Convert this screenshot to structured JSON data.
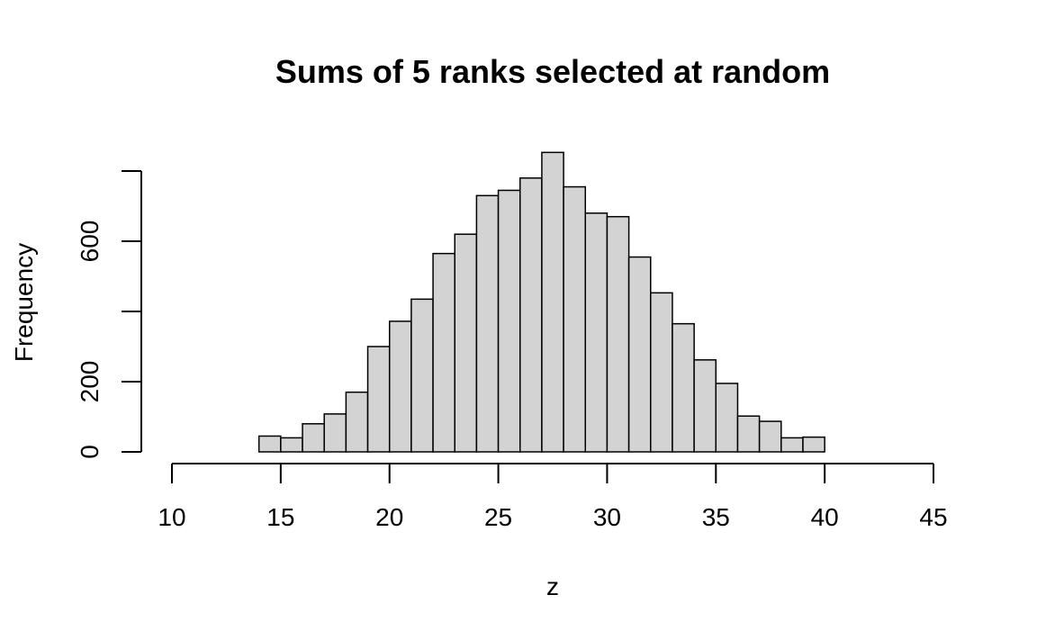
{
  "chart_data": {
    "type": "bar",
    "title": "Sums of 5 ranks selected at random",
    "xlabel": "z",
    "ylabel": "Frequency",
    "xlim": [
      10,
      45
    ],
    "ylim": [
      0,
      800
    ],
    "x_ticks": [
      10,
      15,
      20,
      25,
      30,
      35,
      40,
      45
    ],
    "y_ticks": [
      0,
      200,
      400,
      600,
      800
    ],
    "y_tick_labels": [
      "0",
      "200",
      "",
      "600",
      ""
    ],
    "bin_edges": [
      10,
      11,
      12,
      13,
      14,
      15,
      16,
      17,
      18,
      19,
      20,
      21,
      22,
      23,
      24,
      25,
      26,
      27,
      28,
      29,
      30,
      31,
      32,
      33,
      34,
      35,
      36,
      37,
      38,
      39,
      40,
      41,
      42,
      43,
      44,
      45
    ],
    "values": [
      0,
      0,
      0,
      0,
      45,
      40,
      80,
      108,
      170,
      300,
      372,
      435,
      565,
      620,
      730,
      745,
      780,
      853,
      755,
      680,
      670,
      555,
      453,
      365,
      262,
      195,
      102,
      87,
      40,
      42,
      0,
      0,
      0,
      0,
      0
    ],
    "bar_fill": "#d3d3d3",
    "bar_stroke": "#000000"
  }
}
